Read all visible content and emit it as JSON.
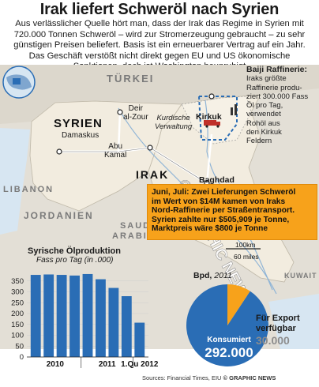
{
  "header": {
    "title": "Irak liefert Schweröl nach Syrien",
    "intro": [
      "Aus verlässlicher Quelle hört man, dass der Irak das Regime in Syrien mit",
      "720.000 Tonnen Schweröl – wird zur Stromerzeugung gebraucht – zu sehr",
      "günstigen Preisen beliefert. Basis ist ein erneuerbarer Vertrag auf ein Jahr.",
      "Das Geschäft verstößt nicht direkt gegen EU und US ökonomische",
      "Sanktionen, doch ist Washington beunruhigt"
    ]
  },
  "map": {
    "countries": {
      "turkey": "TÜRKEI",
      "syria": "SYRIEN",
      "iraq": "IRAK",
      "lebanon": "LIBANON",
      "jordan": "JORDANIEN",
      "saudi": [
        "SAUDI",
        "ARABIEN"
      ],
      "kuwait": "KUWAIT"
    },
    "cities": {
      "damascus": "Damaskus",
      "deir": [
        "Deir",
        "al-Zour"
      ],
      "abukamal": [
        "Abu",
        "Kamal"
      ],
      "kirkuk": "Kirkuk",
      "baghdad": "Baghdad"
    },
    "kurdish": [
      "Kurdische",
      "Verwaltung"
    ],
    "baiji": {
      "heading": "Baiji Raffinerie:",
      "lines": [
        "Iraks größte",
        "Raffinerie produ-",
        "ziert 300.000 Fass",
        "Öl pro Tag,",
        "verwendet",
        "Rohöl aus",
        "den Kirkuk",
        "Feldern"
      ]
    },
    "callout": [
      "Juni, Juli: Zwei Lieferungen Schweröl",
      "im Wert von $14M kamen von Iraks",
      "Nord-Raffinerie per Straßentransport.",
      "Syrien zahlte nur $505,909 je Tonne,",
      "Marktpreis wäre $800 je Tonne"
    ],
    "scale": {
      "km": "100km",
      "miles": "60 miles"
    },
    "watermark": "© GRAPHIC NEWS",
    "colors": {
      "syria_iraq": "#f2ecdf",
      "neighbours": "#e3dfd6",
      "water": "#d7e6f2",
      "accent": "#f7a21b",
      "road": "#ffffff"
    }
  },
  "chart_data": {
    "type": "bar",
    "title": "Syrische Ölproduktion",
    "subtitle": "Fass pro Tag (in .000)",
    "categories": [
      "2010",
      "2010",
      "2010",
      "2010",
      "2011",
      "2011",
      "2011",
      "2011",
      "1.Qu 2012"
    ],
    "group_labels": [
      "2010",
      "2011",
      "1.Qu 2012"
    ],
    "values": [
      378,
      380,
      378,
      375,
      382,
      358,
      318,
      280,
      158
    ],
    "ylim": [
      0,
      400
    ],
    "yticks": [
      0,
      50,
      100,
      150,
      200,
      250,
      300,
      350
    ],
    "grid": true,
    "color": "#2a6db5"
  },
  "pie": {
    "title": "Bpd,",
    "year": "2011",
    "consumed_label": "Konsumiert",
    "consumed_value": "292.000",
    "consumed": 292000,
    "export_label": [
      "Für Export",
      "verfügbar"
    ],
    "export_value": "30.000",
    "export": 30000,
    "colors": {
      "consumed": "#2a6db5",
      "export": "#f7a21b"
    }
  },
  "footer": "Sources: Financial Times, EIU",
  "footer_brand": "© GRAPHIC NEWS"
}
